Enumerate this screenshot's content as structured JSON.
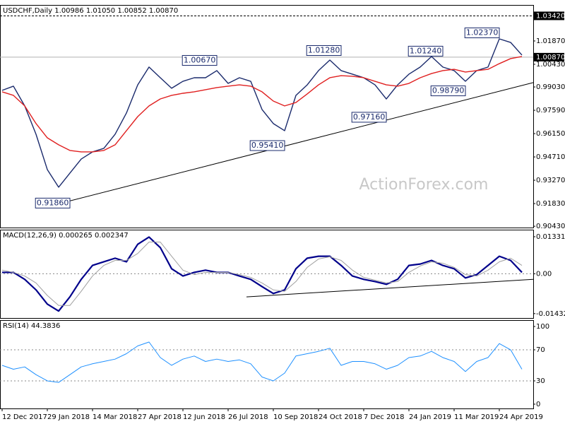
{
  "chart_data": [
    {
      "type": "line",
      "title": "USDCHF,Daily 1.00986 1.01050 1.00852 1.00870",
      "watermark": "ActionForex.com",
      "categories": [
        "12 Dec 2017",
        null,
        null,
        null,
        "29 Jan 2018",
        null,
        null,
        null,
        "14 Mar 2018",
        null,
        null,
        null,
        "27 Apr 2018",
        null,
        null,
        null,
        "12 Jun 2018",
        null,
        null,
        null,
        "26 Jul 2018",
        null,
        null,
        null,
        "10 Sep 2018",
        null,
        null,
        null,
        "24 Oct 2018",
        null,
        null,
        null,
        "7 Dec 2018",
        null,
        null,
        null,
        "24 Jan 2019",
        null,
        null,
        null,
        "11 Mar 2019",
        null,
        null,
        null,
        "24 Apr 2019",
        null,
        null
      ],
      "series": [
        {
          "color": "#1a2a6c",
          "values": [
            0.9882,
            0.9908,
            0.9786,
            0.9611,
            0.9393,
            0.9284,
            0.9371,
            0.9458,
            0.9502,
            0.9524,
            0.9611,
            0.9742,
            0.9916,
            1.0026,
            0.996,
            0.9895,
            0.9938,
            0.996,
            0.996,
            1.0004,
            0.9925,
            0.996,
            0.9938,
            0.9764,
            0.9677,
            0.9633,
            0.9851,
            0.9916,
            1.0004,
            1.0069,
            1.0004,
            0.9982,
            0.996,
            0.9916,
            0.9829,
            0.9916,
            0.9982,
            1.0026,
            1.0091,
            1.0026,
            1.0004,
            0.9938,
            1.0004,
            1.0026,
            1.02,
            1.0178,
            1.01
          ]
        },
        {
          "color": "#e02020",
          "values": [
            0.9873,
            0.9851,
            0.9786,
            0.9677,
            0.9589,
            0.9546,
            0.9511,
            0.9502,
            0.9502,
            0.9511,
            0.9546,
            0.9633,
            0.972,
            0.9786,
            0.9829,
            0.9851,
            0.9864,
            0.9873,
            0.9886,
            0.9899,
            0.9908,
            0.9916,
            0.9908,
            0.9873,
            0.9816,
            0.9786,
            0.9807,
            0.986,
            0.9916,
            0.996,
            0.9973,
            0.9969,
            0.996,
            0.9938,
            0.9916,
            0.9908,
            0.9925,
            0.996,
            0.9986,
            1.0004,
            1.0012,
            0.9995,
            1.0004,
            1.0012,
            1.0047,
            1.0078,
            1.0091
          ]
        }
      ],
      "ylim": [
        0.9035,
        1.0405
      ],
      "yticks": [
        {
          "value": 1.0187,
          "label": "1.01870"
        },
        {
          "value": 1.0043,
          "label": "1.00430"
        },
        {
          "value": 0.9903,
          "label": "0.99030"
        },
        {
          "value": 0.9759,
          "label": "0.97590"
        },
        {
          "value": 0.9615,
          "label": "0.96150"
        },
        {
          "value": 0.9471,
          "label": "0.94710"
        },
        {
          "value": 0.9327,
          "label": "0.93270"
        },
        {
          "value": 0.9183,
          "label": "0.91830"
        },
        {
          "value": 0.9043,
          "label": "0.90430"
        }
      ],
      "hlines": [
        {
          "value": 1.0342,
          "label": "1.03420",
          "style": "dashed"
        },
        {
          "value": 1.0087,
          "label": "1.00870",
          "style": "solid"
        }
      ],
      "trendline": {
        "from": {
          "at": 5,
          "value": 0.9175
        },
        "to": {
          "at": 46,
          "value": 0.993
        }
      },
      "price_labels": [
        {
          "label": "0.91860",
          "value": 0.9186,
          "at": 6
        },
        {
          "label": "1.00670",
          "value": 1.0067,
          "at": 19
        },
        {
          "label": "0.95410",
          "value": 0.9541,
          "at": 25
        },
        {
          "label": "1.01280",
          "value": 1.0128,
          "at": 30
        },
        {
          "label": "0.97160",
          "value": 0.9716,
          "at": 34
        },
        {
          "label": "1.01240",
          "value": 1.0124,
          "at": 39
        },
        {
          "label": "0.98790",
          "value": 0.9879,
          "at": 41
        },
        {
          "label": "1.02370",
          "value": 1.0237,
          "at": 44
        }
      ]
    },
    {
      "type": "line",
      "title": "MACD(12,26,9) 0.000265 0.002347",
      "series": [
        {
          "color": "#00008b",
          "width": 2.2,
          "values": [
            0.0005,
            0.0005,
            -0.002,
            -0.0058,
            -0.0109,
            -0.0134,
            -0.0083,
            -0.002,
            0.003,
            0.0043,
            0.0056,
            0.0043,
            0.0106,
            0.0132,
            0.0094,
            0.0018,
            -0.0008,
            0.0005,
            0.0013,
            0.0005,
            0.0005,
            -0.0008,
            -0.002,
            -0.0046,
            -0.0071,
            -0.0058,
            0.0018,
            0.0056,
            0.0063,
            0.0063,
            0.003,
            -0.0008,
            -0.002,
            -0.0028,
            -0.0038,
            -0.002,
            0.003,
            0.0035,
            0.0048,
            0.003,
            0.0018,
            -0.0015,
            -0.0003,
            0.003,
            0.0063,
            0.0048,
            0.0005
          ]
        },
        {
          "color": "#a0a0a0",
          "width": 1,
          "values": [
            0.0013,
            0.0005,
            -0.0008,
            -0.0033,
            -0.0078,
            -0.0114,
            -0.0114,
            -0.0063,
            -0.0008,
            0.003,
            0.0048,
            0.0048,
            0.0073,
            0.0114,
            0.0114,
            0.0063,
            0.0013,
            -0.0003,
            0.0005,
            0.0005,
            0.0005,
            -0.0003,
            -0.0013,
            -0.0033,
            -0.0058,
            -0.0063,
            -0.0028,
            0.0023,
            0.0053,
            0.0061,
            0.0048,
            0.0013,
            -0.0013,
            -0.0023,
            -0.0033,
            -0.0028,
            0.0005,
            0.0028,
            0.0043,
            0.0038,
            0.0023,
            -0.0003,
            -0.0008,
            0.0013,
            0.0043,
            0.0056,
            0.003
          ]
        }
      ],
      "ylim": [
        -0.0159,
        0.0156
      ],
      "yticks": [
        0.013319,
        {
          "value": 0,
          "label": "0.00"
        },
        -0.014323
      ],
      "levels": [
        0
      ],
      "trendline": {
        "from": {
          "at": 22,
          "value": -0.0083
        },
        "to": {
          "at": 46,
          "value": -0.002
        }
      }
    },
    {
      "type": "line",
      "title": "RSI(14) 44.3836",
      "series": [
        {
          "color": "#1e90ff",
          "width": 1,
          "values": [
            50,
            45,
            48,
            38,
            30,
            28,
            38,
            48,
            52,
            55,
            58,
            65,
            75,
            80,
            60,
            50,
            58,
            62,
            55,
            58,
            55,
            57,
            52,
            35,
            30,
            40,
            62,
            65,
            68,
            72,
            50,
            55,
            55,
            52,
            45,
            50,
            60,
            62,
            68,
            60,
            55,
            42,
            55,
            60,
            78,
            70,
            45
          ]
        }
      ],
      "ylim": [
        -5.5,
        107.3
      ],
      "yticks": [
        100,
        70,
        30,
        0
      ],
      "levels": [
        70,
        30
      ]
    }
  ]
}
